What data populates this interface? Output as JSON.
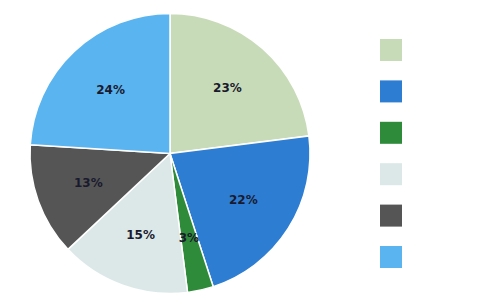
{
  "chart_data": {
    "type": "pie",
    "values": [
      23,
      22,
      3,
      15,
      13,
      24
    ],
    "value_labels": [
      "23%",
      "22%",
      "3%",
      "15%",
      "13%",
      "24%"
    ],
    "colors": [
      "#c8dbb8",
      "#2d7dd2",
      "#2e8b3a",
      "#dce8e8",
      "#555555",
      "#5ab4f0"
    ],
    "text_color": "#1a1a2e",
    "data_labels": true,
    "legend": "right"
  }
}
